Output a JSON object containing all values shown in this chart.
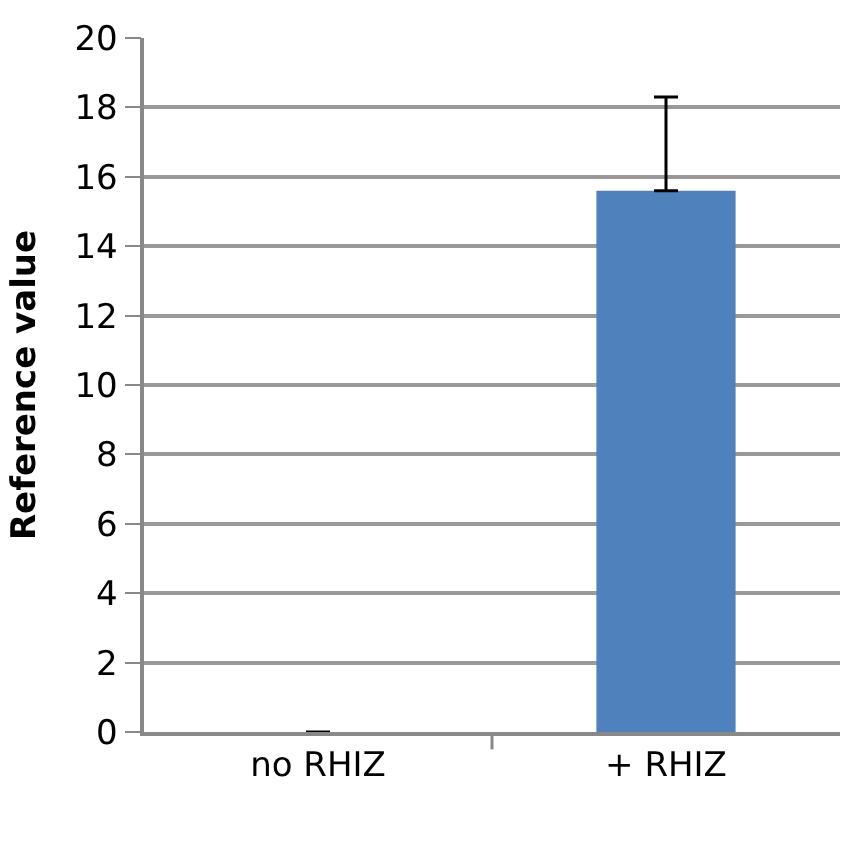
{
  "chart_data": {
    "type": "bar",
    "ylabel": "Reference value",
    "categories": [
      "no RHIZ",
      "+ RHIZ"
    ],
    "values": [
      0,
      15.6
    ],
    "color": "#4f81bd",
    "errors": [
      null,
      [
        15.6,
        18.3
      ]
    ],
    "ylim": [
      0,
      20
    ],
    "yticks": [
      0,
      2,
      4,
      6,
      8,
      10,
      12,
      14,
      16,
      18,
      20
    ],
    "grid": "y"
  }
}
